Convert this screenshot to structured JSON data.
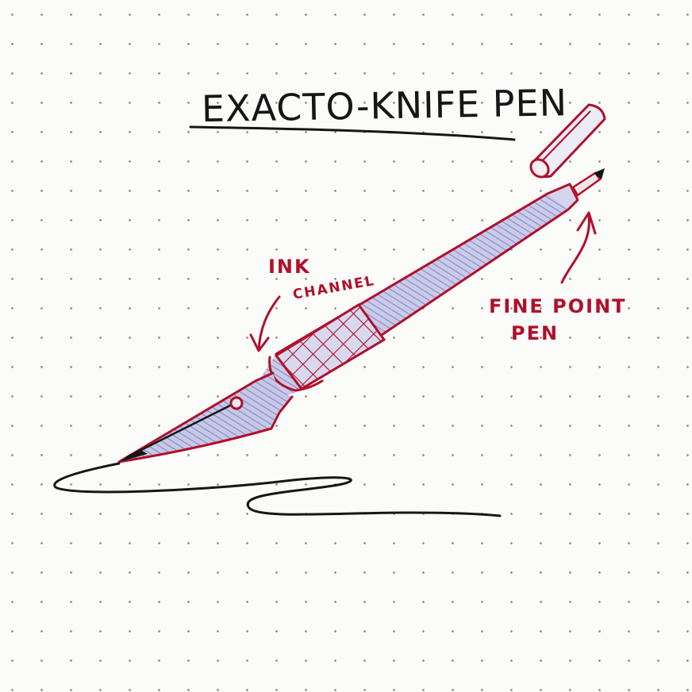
{
  "title": "EXACTO-KNIFE PEN",
  "labels": {
    "ink_line1": "INK",
    "ink_line2": "CHANNEL",
    "fine_line1": "FINE POINT",
    "fine_line2": "PEN"
  },
  "colors": {
    "ink_black": "#161616",
    "ink_red": "#b0102a",
    "shade_blue": "#7a7fc0",
    "paper": "#fbfbf9",
    "dot_grid": "#8a8a8a"
  }
}
